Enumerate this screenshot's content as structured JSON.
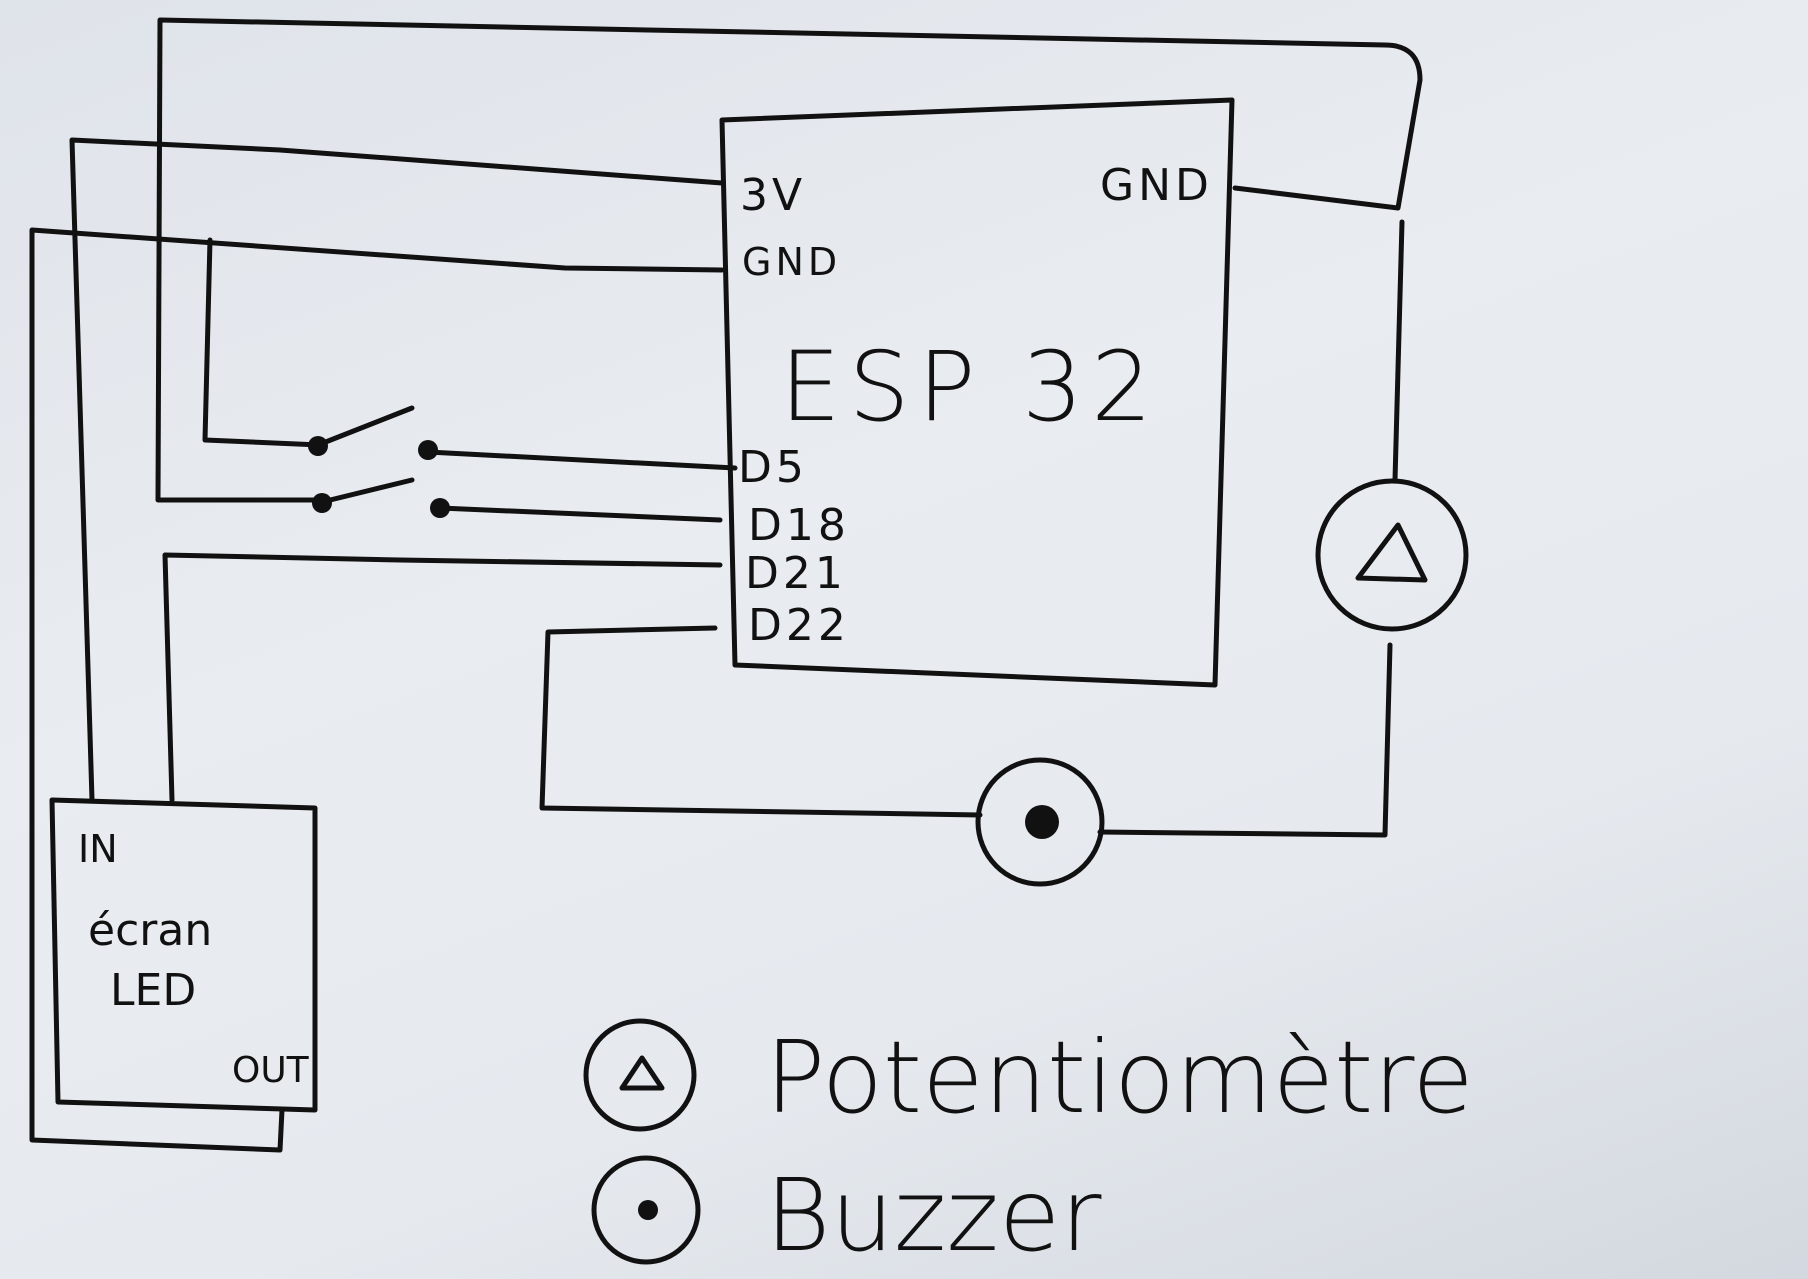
{
  "esp32": {
    "title": "ESP 32",
    "pins_left": {
      "v3": "3V",
      "gnd": "GND",
      "d5": "D5",
      "d18": "D18",
      "d21": "D21",
      "d22": "D22"
    },
    "pin_right_gnd": "GND"
  },
  "led_screen": {
    "in": "IN",
    "name_line1": "écran",
    "name_line2": "LED",
    "out": "OUT"
  },
  "legend": {
    "potentiometer": "Potentiomètre",
    "buzzer": "Buzzer"
  }
}
